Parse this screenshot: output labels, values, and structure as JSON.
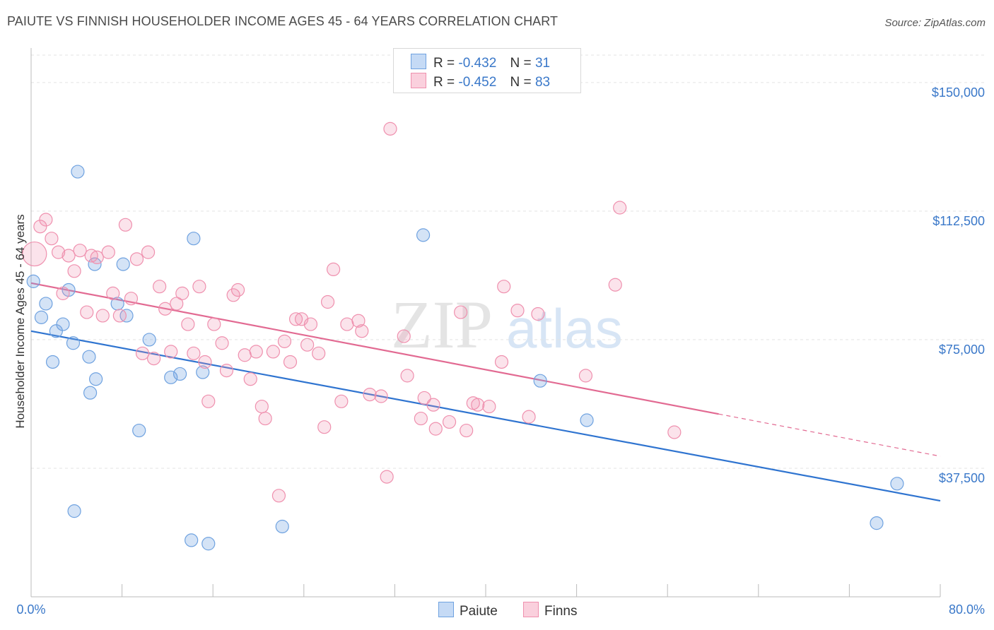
{
  "title": "PAIUTE VS FINNISH HOUSEHOLDER INCOME AGES 45 - 64 YEARS CORRELATION CHART",
  "source": "Source: ZipAtlas.com",
  "watermark": {
    "zip": "ZIP",
    "atlas": "atlas"
  },
  "legend": {
    "rows": [
      {
        "r_label": "R =",
        "r_value": "-0.432",
        "n_label": "N =",
        "n_value": "31",
        "color": "#6fa2e0"
      },
      {
        "r_label": "R =",
        "r_value": "-0.452",
        "n_label": "N =",
        "n_value": "83",
        "color": "#ef90ae"
      }
    ]
  },
  "bottom_legend": [
    {
      "label": "Paiute",
      "color": "#6fa2e0"
    },
    {
      "label": "Finns",
      "color": "#ef90ae"
    }
  ],
  "chart_data": {
    "type": "scatter",
    "title": "PAIUTE VS FINNISH HOUSEHOLDER INCOME AGES 45 - 64 YEARS CORRELATION CHART",
    "xlabel": "",
    "ylabel": "Householder Income Ages 45 - 64 years",
    "xlim": [
      0,
      80
    ],
    "ylim": [
      0,
      158000
    ],
    "x_tick_labels": [
      "0.0%",
      "80.0%"
    ],
    "y_ticks": [
      37500,
      75000,
      112500,
      150000
    ],
    "y_tick_labels": [
      "$37,500",
      "$75,000",
      "$112,500",
      "$150,000"
    ],
    "grid": true,
    "series": [
      {
        "name": "Paiute",
        "color": "#6fa2e0",
        "trend": {
          "x0": 0,
          "y0": 77500,
          "x1": 80,
          "y1": 28000,
          "dashed_from": null
        },
        "points": [
          [
            0.2,
            92000
          ],
          [
            0.9,
            81500
          ],
          [
            1.3,
            85500
          ],
          [
            1.9,
            68500
          ],
          [
            2.2,
            77500
          ],
          [
            2.8,
            79500
          ],
          [
            3.3,
            89500
          ],
          [
            3.7,
            74000
          ],
          [
            3.8,
            25000
          ],
          [
            4.1,
            124000
          ],
          [
            5.1,
            70000
          ],
          [
            5.2,
            59500
          ],
          [
            5.7,
            63500
          ],
          [
            5.6,
            97000
          ],
          [
            7.6,
            85500
          ],
          [
            8.1,
            97000
          ],
          [
            8.4,
            82000
          ],
          [
            9.5,
            48500
          ],
          [
            10.4,
            75000
          ],
          [
            12.3,
            64000
          ],
          [
            13.1,
            65000
          ],
          [
            14.3,
            104500
          ],
          [
            14.1,
            16500
          ],
          [
            15.1,
            65500
          ],
          [
            15.6,
            15500
          ],
          [
            22.1,
            20500
          ],
          [
            34.5,
            105500
          ],
          [
            44.8,
            63000
          ],
          [
            48.9,
            51500
          ],
          [
            76.2,
            33000
          ],
          [
            74.4,
            21500
          ]
        ]
      },
      {
        "name": "Finns",
        "color": "#ef90ae",
        "trend": {
          "x0": 0,
          "y0": 91500,
          "x1": 80,
          "y1": 41000,
          "dashed_from": 60.5
        },
        "points": [
          [
            0.3,
            100000
          ],
          [
            0.8,
            108000
          ],
          [
            1.3,
            110000
          ],
          [
            1.8,
            104500
          ],
          [
            2.4,
            100500
          ],
          [
            2.8,
            88500
          ],
          [
            3.3,
            99500
          ],
          [
            3.8,
            95000
          ],
          [
            4.3,
            101000
          ],
          [
            4.9,
            83000
          ],
          [
            5.3,
            99500
          ],
          [
            5.8,
            99000
          ],
          [
            6.3,
            82000
          ],
          [
            6.8,
            100500
          ],
          [
            7.2,
            88500
          ],
          [
            7.8,
            82000
          ],
          [
            8.3,
            108500
          ],
          [
            8.8,
            87000
          ],
          [
            9.3,
            98500
          ],
          [
            9.8,
            71000
          ],
          [
            10.3,
            100500
          ],
          [
            10.8,
            69500
          ],
          [
            11.3,
            90500
          ],
          [
            11.8,
            84000
          ],
          [
            12.3,
            71500
          ],
          [
            12.8,
            85500
          ],
          [
            13.3,
            88500
          ],
          [
            13.8,
            79500
          ],
          [
            14.3,
            71000
          ],
          [
            14.8,
            90500
          ],
          [
            15.3,
            68500
          ],
          [
            15.6,
            57000
          ],
          [
            16.1,
            79500
          ],
          [
            16.8,
            74000
          ],
          [
            17.2,
            66000
          ],
          [
            17.8,
            88000
          ],
          [
            18.2,
            89500
          ],
          [
            18.8,
            70500
          ],
          [
            19.3,
            63500
          ],
          [
            19.8,
            71500
          ],
          [
            20.3,
            55500
          ],
          [
            20.6,
            52000
          ],
          [
            21.3,
            71500
          ],
          [
            21.8,
            29500
          ],
          [
            22.3,
            74500
          ],
          [
            22.8,
            68500
          ],
          [
            23.3,
            81000
          ],
          [
            23.8,
            81000
          ],
          [
            24.3,
            73500
          ],
          [
            24.6,
            79500
          ],
          [
            25.3,
            71000
          ],
          [
            25.8,
            49500
          ],
          [
            26.1,
            86000
          ],
          [
            26.6,
            95500
          ],
          [
            27.3,
            57000
          ],
          [
            27.8,
            79500
          ],
          [
            28.8,
            80500
          ],
          [
            29.1,
            77500
          ],
          [
            29.8,
            59000
          ],
          [
            30.8,
            58500
          ],
          [
            31.3,
            35000
          ],
          [
            31.6,
            136500
          ],
          [
            32.8,
            76000
          ],
          [
            33.1,
            64500
          ],
          [
            34.3,
            52000
          ],
          [
            34.6,
            58000
          ],
          [
            35.4,
            56000
          ],
          [
            35.6,
            49000
          ],
          [
            36.8,
            51000
          ],
          [
            37.8,
            83000
          ],
          [
            38.3,
            48500
          ],
          [
            38.9,
            56500
          ],
          [
            39.3,
            56000
          ],
          [
            40.3,
            55500
          ],
          [
            41.4,
            68500
          ],
          [
            41.6,
            90500
          ],
          [
            42.8,
            83500
          ],
          [
            43.8,
            52500
          ],
          [
            44.6,
            82500
          ],
          [
            48.8,
            64500
          ],
          [
            51.4,
            91000
          ],
          [
            51.8,
            113500
          ],
          [
            56.6,
            48000
          ]
        ]
      }
    ]
  }
}
